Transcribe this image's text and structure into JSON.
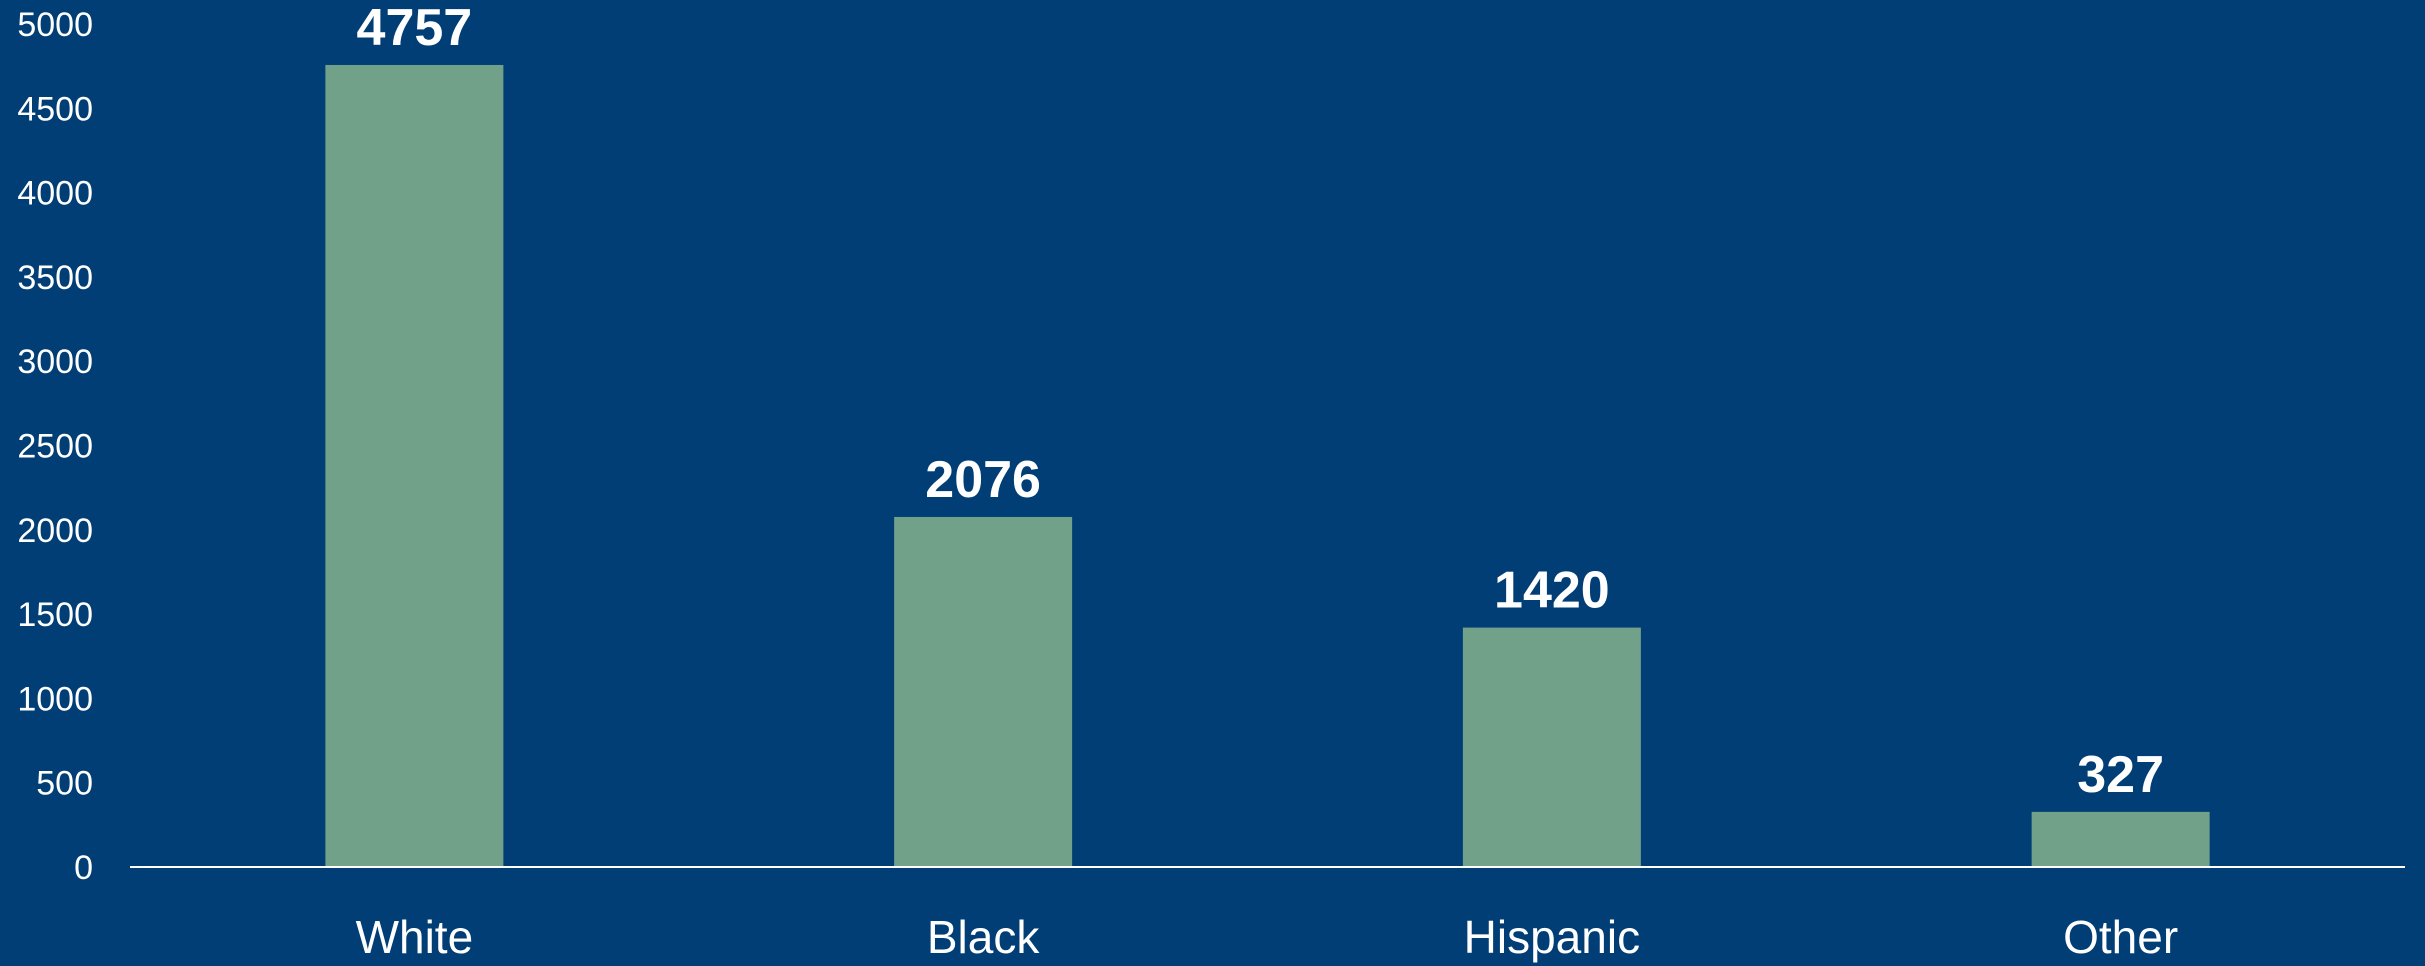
{
  "chart_data": {
    "type": "bar",
    "title": "",
    "xlabel": "",
    "ylabel": "",
    "categories": [
      "White",
      "Black",
      "Hispanic",
      "Other"
    ],
    "values": [
      4757,
      2076,
      1420,
      327
    ],
    "data_labels": [
      "4757",
      "2076",
      "1420",
      "327"
    ],
    "yticks": [
      0,
      500,
      1000,
      1500,
      2000,
      2500,
      3000,
      3500,
      4000,
      4500,
      5000
    ],
    "ylim": [
      0,
      5000
    ],
    "grid": false,
    "legend": "none",
    "colors": {
      "background": "#003e75",
      "bar": "#72a18a",
      "text": "#ffffff",
      "axis": "#ffffff"
    }
  }
}
